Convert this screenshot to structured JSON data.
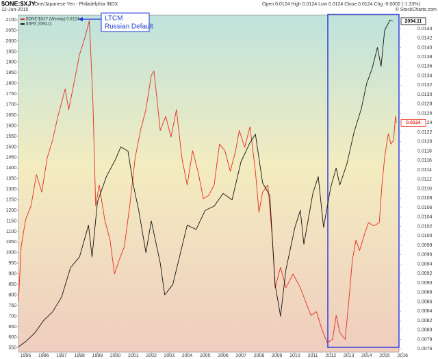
{
  "chart_data": {
    "type": "line",
    "title": "$ONE:$XJY",
    "subtitle": "One/Japanese Yen - Philadelphia INDX",
    "date": "12-Jun-2015",
    "quote": "Open 0.0124 High 0.0124 Low 0.0124 Close 0.0124 Chg -0.0002 (-1.33%)",
    "credit": "© StockCharts.com",
    "annotation": [
      "LTCM",
      "Russian Default"
    ],
    "xlim": [
      1994.6,
      2015.8
    ],
    "xticks": [
      1995,
      1996,
      1997,
      1998,
      1999,
      2000,
      2001,
      2002,
      2003,
      2004,
      2005,
      2006,
      2007,
      2008,
      2009,
      2010,
      2011,
      2012,
      2013,
      2014,
      2015,
      2016
    ],
    "ylim": [
      530,
      2123
    ],
    "yticks": [
      550,
      600,
      650,
      700,
      750,
      800,
      850,
      900,
      950,
      1000,
      1050,
      1100,
      1150,
      1200,
      1250,
      1300,
      1350,
      1400,
      1450,
      1500,
      1550,
      1600,
      1650,
      1700,
      1750,
      1800,
      1850,
      1900,
      1950,
      2000,
      2050,
      2100
    ],
    "y2lim": [
      0.00753,
      0.01469
    ],
    "y2ticks": [
      0.0076,
      0.0078,
      {
        "value": 0.008,
        "label": "0.0080"
      },
      0.0082,
      0.0084,
      0.0086,
      0.0088,
      {
        "value": 0.009,
        "label": "0.0090"
      },
      0.0092,
      0.0094,
      0.0096,
      0.0098,
      {
        "value": 0.01,
        "label": "0.0100"
      },
      0.0102,
      0.0104,
      0.0106,
      0.0108,
      {
        "value": 0.011,
        "label": "0.0110"
      },
      0.0112,
      0.0114,
      0.0116,
      0.0118,
      {
        "value": 0.012,
        "label": "0.0120"
      },
      0.0122,
      0.0124,
      0.0126,
      0.0128,
      {
        "value": 0.013,
        "label": "0.0130"
      },
      0.0132,
      0.0134,
      0.0136,
      0.0138,
      {
        "value": 0.014,
        "label": "0.0140"
      },
      0.0142,
      0.0144
    ],
    "grid": false,
    "series": [
      {
        "name": "$ONE:$XJY (Weekly) 0.0124",
        "color": "#e8291c",
        "axis": "y2",
        "end_label": "0.0124",
        "x": [
          1994.6,
          1994.75,
          1995.0,
          1995.3,
          1995.6,
          1995.9,
          1996.2,
          1996.5,
          1996.8,
          1997.2,
          1997.4,
          1997.7,
          1998.0,
          1998.3,
          1998.55,
          1998.75,
          1998.9,
          1999.1,
          1999.4,
          1999.7,
          1999.95,
          2000.2,
          2000.5,
          2000.8,
          2001.1,
          2001.4,
          2001.7,
          2002.0,
          2002.15,
          2002.5,
          2002.8,
          2003.1,
          2003.4,
          2003.7,
          2004.0,
          2004.3,
          2004.6,
          2004.9,
          2005.2,
          2005.5,
          2005.8,
          2006.1,
          2006.4,
          2006.7,
          2006.9,
          2007.2,
          2007.5,
          2007.8,
          2008.0,
          2008.2,
          2008.5,
          2008.75,
          2008.9,
          2009.2,
          2009.5,
          2009.9,
          2010.3,
          2010.6,
          2010.9,
          2011.2,
          2011.5,
          2011.8,
          2012.1,
          2012.3,
          2012.5,
          2012.8,
          2013.0,
          2013.2,
          2013.4,
          2013.6,
          2013.9,
          2014.1,
          2014.4,
          2014.7,
          2014.85,
          2015.0,
          2015.2,
          2015.35,
          2015.5,
          2015.6,
          2015.65
        ],
        "values": [
          0.0086,
          0.00977,
          0.01035,
          0.01064,
          0.0113,
          0.01093,
          0.01166,
          0.01203,
          0.01254,
          0.01312,
          0.01268,
          0.01326,
          0.01385,
          0.01421,
          0.01457,
          0.01283,
          0.01064,
          0.01108,
          0.01035,
          0.00991,
          0.00919,
          0.00948,
          0.00977,
          0.01064,
          0.01166,
          0.01224,
          0.01268,
          0.01341,
          0.0135,
          0.01224,
          0.01254,
          0.0121,
          0.01268,
          0.01166,
          0.01108,
          0.01181,
          0.01137,
          0.01079,
          0.01086,
          0.01108,
          0.01195,
          0.01181,
          0.01137,
          0.01181,
          0.01224,
          0.01188,
          0.01232,
          0.01137,
          0.0105,
          0.01093,
          0.01108,
          0.00991,
          0.0089,
          0.00933,
          0.0089,
          0.00919,
          0.0089,
          0.0086,
          0.00831,
          0.00839,
          0.00802,
          0.00773,
          0.0078,
          0.00831,
          0.00795,
          0.0078,
          0.0086,
          0.00948,
          0.00991,
          0.00969,
          0.01006,
          0.01028,
          0.01021,
          0.01028,
          0.01108,
          0.01166,
          0.01217,
          0.01195,
          0.01203,
          0.01254,
          0.0124
        ]
      },
      {
        "name": "$SPX 2094.11",
        "color": "#111111",
        "axis": "y",
        "end_label": "2094.11",
        "x": [
          1994.6,
          1995.0,
          1995.5,
          1996.0,
          1996.5,
          1997.0,
          1997.5,
          1998.0,
          1998.5,
          1998.7,
          1999.0,
          1999.5,
          2000.0,
          2000.3,
          2000.7,
          2001.0,
          2001.3,
          2001.7,
          2002.0,
          2002.5,
          2002.75,
          2003.2,
          2003.6,
          2004.0,
          2004.5,
          2005.0,
          2005.5,
          2006.0,
          2006.5,
          2007.0,
          2007.5,
          2007.8,
          2008.2,
          2008.6,
          2008.9,
          2009.2,
          2009.5,
          2010.0,
          2010.3,
          2010.5,
          2011.0,
          2011.3,
          2011.6,
          2012.0,
          2012.3,
          2012.5,
          2012.9,
          2013.3,
          2013.7,
          2014.0,
          2014.3,
          2014.6,
          2014.8,
          2015.0,
          2015.3,
          2015.45
        ],
        "values": [
          555,
          580,
          620,
          680,
          720,
          790,
          930,
          980,
          1130,
          980,
          1240,
          1360,
          1440,
          1500,
          1480,
          1320,
          1200,
          1000,
          1150,
          950,
          800,
          850,
          990,
          1130,
          1110,
          1200,
          1220,
          1280,
          1250,
          1430,
          1520,
          1560,
          1330,
          1270,
          850,
          700,
          920,
          1120,
          1200,
          1040,
          1280,
          1360,
          1120,
          1310,
          1400,
          1320,
          1420,
          1570,
          1680,
          1800,
          1870,
          1970,
          1880,
          2050,
          2100,
          2094.11
        ]
      }
    ]
  }
}
